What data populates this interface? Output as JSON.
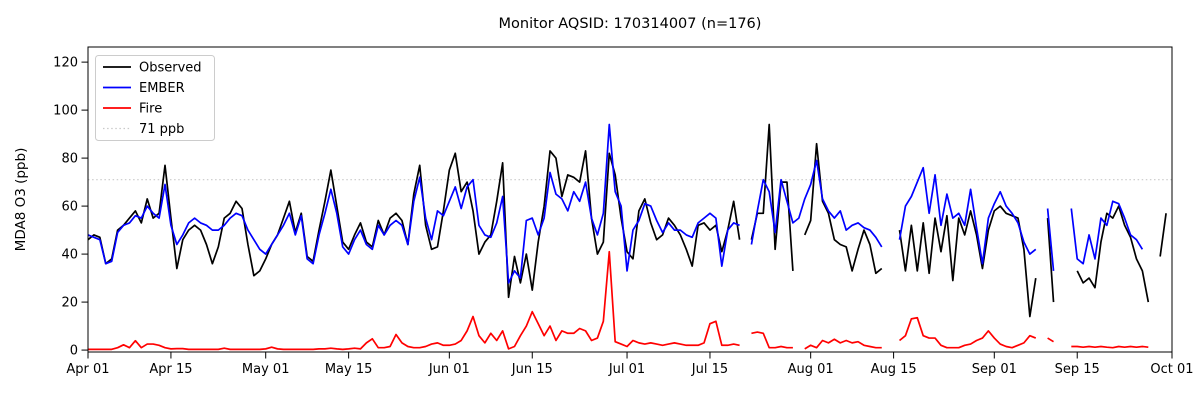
{
  "title": "Monitor AQSID: 170314007 (n=176)",
  "ylabel": "MDA8 O3 (ppb)",
  "colors": {
    "observed": "#000000",
    "ember": "#0000ff",
    "fire": "#ff0000",
    "threshold": "#c9c9c9",
    "background": "#ffffff"
  },
  "chart_data": {
    "type": "line",
    "title": "Monitor AQSID: 170314007 (n=176)",
    "xlabel": "",
    "ylabel": "MDA8 O3 (ppb)",
    "ylim": [
      -0.8,
      126.3
    ],
    "y_ticks": [
      0,
      20,
      40,
      60,
      80,
      100,
      120
    ],
    "x_max_day": 183,
    "x_ticks": [
      {
        "day": 0,
        "label": "Apr 01"
      },
      {
        "day": 14,
        "label": "Apr 15"
      },
      {
        "day": 30,
        "label": "May 01"
      },
      {
        "day": 44,
        "label": "May 15"
      },
      {
        "day": 61,
        "label": "Jun 01"
      },
      {
        "day": 75,
        "label": "Jun 15"
      },
      {
        "day": 91,
        "label": "Jul 01"
      },
      {
        "day": 105,
        "label": "Jul 15"
      },
      {
        "day": 122,
        "label": "Aug 01"
      },
      {
        "day": 136,
        "label": "Aug 15"
      },
      {
        "day": 153,
        "label": "Sep 01"
      },
      {
        "day": 167,
        "label": "Sep 15"
      },
      {
        "day": 183,
        "label": "Oct 01"
      }
    ],
    "threshold": {
      "value": 71,
      "label": "71 ppb"
    },
    "legend_position": "upper left",
    "grid": false,
    "series": [
      {
        "name": "Observed",
        "color": "#000000",
        "values": [
          46,
          48,
          47,
          36,
          38,
          50,
          52,
          55,
          58,
          53,
          63,
          55,
          57,
          77,
          55,
          34,
          46,
          50,
          52,
          50,
          44,
          36,
          43,
          55,
          57,
          62,
          59,
          44,
          31,
          33,
          38,
          44,
          48,
          55,
          62,
          49,
          57,
          39,
          37,
          50,
          62,
          75,
          60,
          45,
          42,
          48,
          53,
          45,
          43,
          54,
          48,
          55,
          57,
          54,
          44,
          65,
          77,
          52,
          42,
          43,
          58,
          75,
          82,
          66,
          70,
          58,
          40,
          45,
          48,
          62,
          78,
          22,
          39,
          28,
          40,
          25,
          45,
          60,
          83,
          80,
          64,
          73,
          72,
          70,
          83,
          55,
          40,
          45,
          82,
          73,
          55,
          41,
          38,
          58,
          63,
          53,
          46,
          48,
          55,
          52,
          48,
          42,
          35,
          52,
          53,
          50,
          52,
          41,
          50,
          62,
          46,
          null,
          46,
          57,
          57,
          94,
          42,
          70,
          70,
          33,
          null,
          48,
          54,
          86,
          62,
          57,
          46,
          44,
          43,
          33,
          42,
          50,
          44,
          32,
          34,
          null,
          null,
          50,
          33,
          52,
          33,
          53,
          32,
          55,
          41,
          56,
          29,
          55,
          48,
          58,
          48,
          34,
          50,
          58,
          60,
          57,
          56,
          55,
          42,
          14,
          30,
          null,
          55,
          20,
          null,
          null,
          null,
          33,
          28,
          30,
          26,
          45,
          57,
          55,
          60,
          52,
          47,
          38,
          33,
          20,
          null,
          39,
          57,
          null
        ]
      },
      {
        "name": "EMBER",
        "color": "#0000ff",
        "values": [
          48,
          47,
          46,
          36,
          37,
          49,
          52,
          53,
          56,
          55,
          60,
          57,
          55,
          69,
          52,
          44,
          48,
          53,
          55,
          53,
          52,
          50,
          50,
          52,
          55,
          57,
          56,
          50,
          46,
          42,
          40,
          44,
          48,
          52,
          57,
          48,
          56,
          38,
          36,
          48,
          57,
          67,
          57,
          43,
          40,
          46,
          50,
          44,
          42,
          52,
          48,
          52,
          54,
          52,
          44,
          62,
          72,
          55,
          46,
          58,
          56,
          62,
          68,
          59,
          68,
          71,
          52,
          48,
          47,
          53,
          64,
          28,
          33,
          30,
          54,
          55,
          48,
          55,
          74,
          65,
          63,
          58,
          66,
          62,
          70,
          55,
          48,
          57,
          94,
          66,
          60,
          33,
          50,
          54,
          61,
          60,
          54,
          49,
          53,
          50,
          50,
          48,
          47,
          53,
          55,
          57,
          55,
          35,
          50,
          53,
          52,
          null,
          44,
          58,
          71,
          66,
          49,
          71,
          62,
          53,
          55,
          63,
          69,
          79,
          63,
          58,
          55,
          58,
          50,
          52,
          53,
          51,
          50,
          47,
          43,
          null,
          null,
          46,
          60,
          64,
          70,
          76,
          57,
          73,
          52,
          65,
          55,
          57,
          52,
          67,
          51,
          36,
          55,
          61,
          66,
          60,
          57,
          53,
          45,
          40,
          42,
          null,
          59,
          33,
          null,
          null,
          59,
          38,
          36,
          48,
          38,
          55,
          52,
          62,
          61,
          55,
          48,
          46,
          42,
          null,
          null,
          null,
          null,
          null
        ]
      },
      {
        "name": "Fire",
        "color": "#ff0000",
        "values": [
          0.3,
          0.3,
          0.3,
          0.3,
          0.3,
          1,
          2.2,
          1,
          3.9,
          1,
          2.5,
          2.5,
          2,
          1,
          0.5,
          0.6,
          0.6,
          0.3,
          0.3,
          0.3,
          0.3,
          0.3,
          0.3,
          0.8,
          0.3,
          0.3,
          0.3,
          0.3,
          0.3,
          0.3,
          0.5,
          1.2,
          0.5,
          0.3,
          0.3,
          0.3,
          0.3,
          0.3,
          0.3,
          0.5,
          0.5,
          0.8,
          0.5,
          0.3,
          0.5,
          0.8,
          0.5,
          3,
          4.7,
          1,
          1,
          1.5,
          6.5,
          3,
          1.5,
          1,
          1,
          1.5,
          2.5,
          3,
          2,
          2,
          2.5,
          4,
          8,
          14,
          6,
          3,
          7,
          4,
          8,
          0.5,
          1.5,
          6,
          10,
          16,
          11,
          6,
          10,
          4,
          8,
          7,
          7,
          9,
          8,
          4,
          5,
          12,
          41,
          3.5,
          2.5,
          1.5,
          4,
          3,
          2.5,
          3,
          2.5,
          2,
          2.5,
          3,
          2.5,
          2,
          2,
          2,
          3,
          11,
          12,
          2,
          2,
          2.5,
          2,
          null,
          7,
          7.5,
          7,
          1,
          1,
          1.5,
          1,
          1,
          null,
          0.5,
          2,
          1,
          4,
          3,
          4.5,
          3,
          4,
          3,
          3.5,
          2,
          1.5,
          1,
          1,
          null,
          null,
          4,
          6,
          13,
          13.5,
          6,
          5,
          5,
          2,
          1,
          1,
          1,
          2,
          2.5,
          4,
          5,
          8,
          5,
          2.5,
          1.5,
          1,
          2,
          3,
          6,
          5,
          null,
          5,
          3.5,
          null,
          null,
          1.5,
          1.5,
          1.2,
          1.5,
          1.2,
          1.5,
          1.2,
          1,
          1.5,
          1.2,
          1.5,
          1.2,
          1.5,
          1.2,
          null,
          null,
          null,
          null
        ]
      }
    ]
  }
}
